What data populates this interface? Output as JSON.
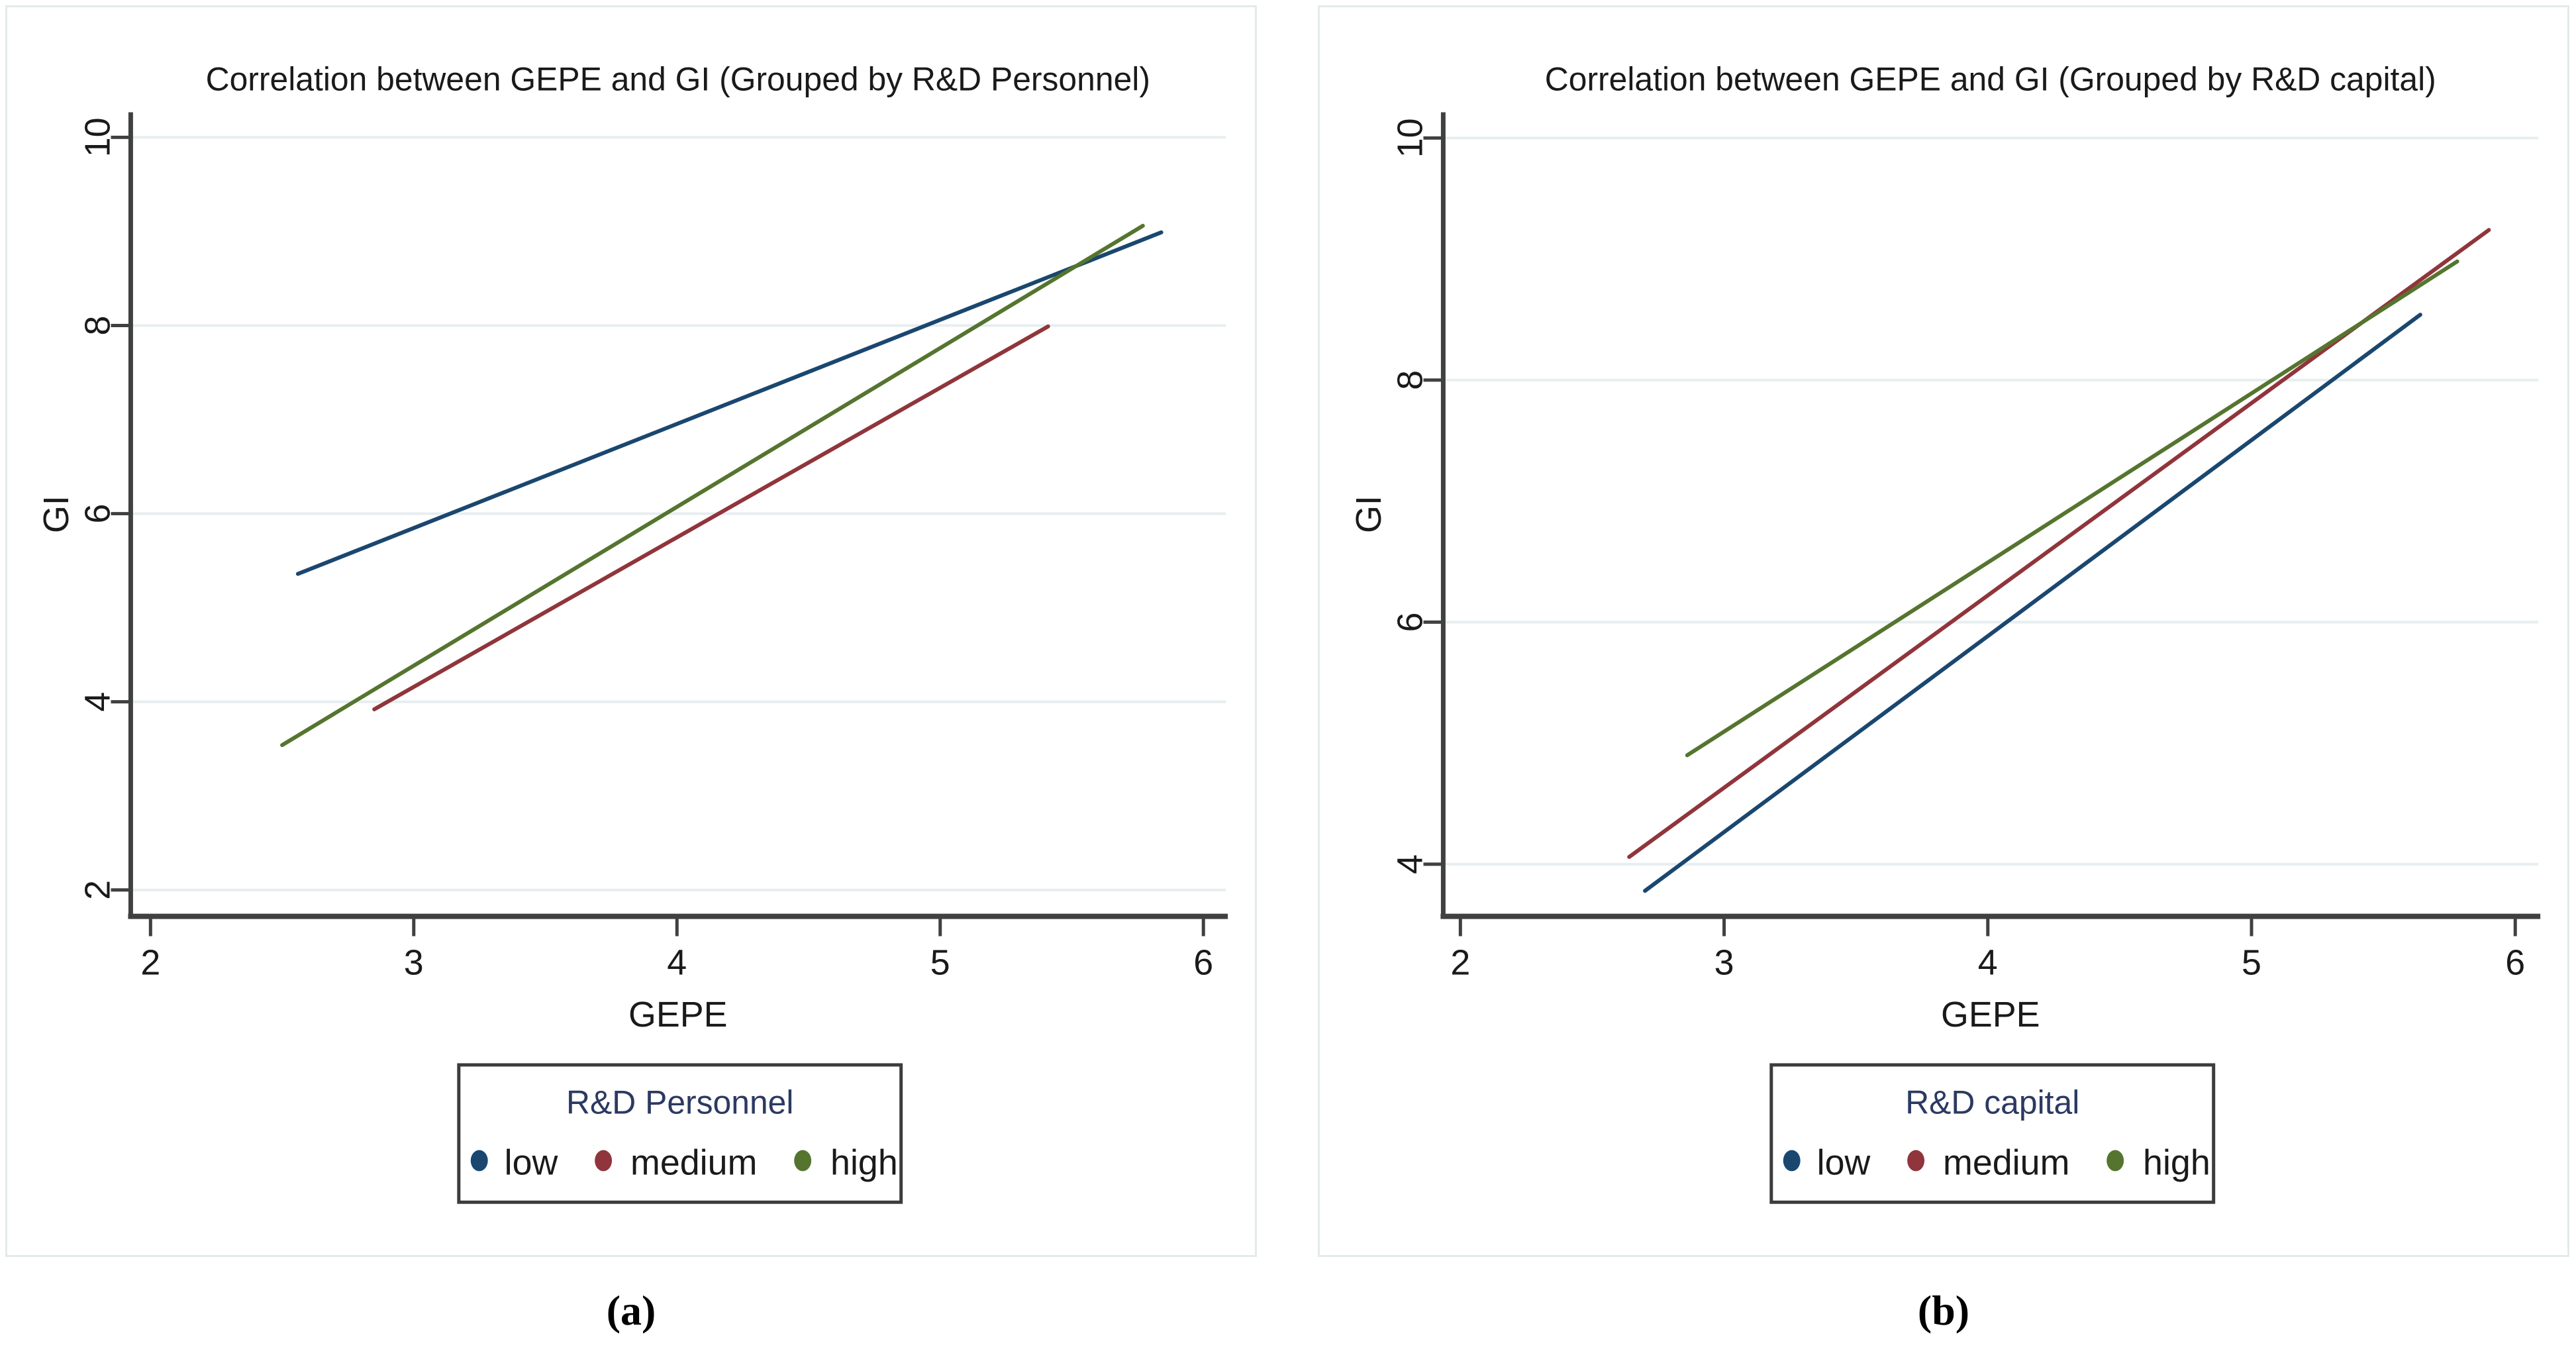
{
  "figure": {
    "background": "#ffffff",
    "panel_border_color": "#e3eaec"
  },
  "captions": {
    "a": "(a)",
    "b": "(b)"
  },
  "colors": {
    "low": "#1a476f",
    "medium": "#90353b",
    "high": "#55752f",
    "grid": "#e7eef0",
    "axis": "#404040",
    "tick_text": "#1a1a1a",
    "title_text": "#1a1a1a",
    "legend_border": "#3c3c3c",
    "legend_title": "#2c3a62"
  },
  "chart_data": [
    {
      "type": "line",
      "title": "Correlation between GEPE and GI (Grouped by R&D Personnel)",
      "xlabel": "GEPE",
      "ylabel": "GI",
      "xticks": [
        2,
        3,
        4,
        5,
        6
      ],
      "yticks": [
        2,
        4,
        6,
        8,
        10
      ],
      "xlim": [
        1.92,
        6.09
      ],
      "ylim": [
        1.7,
        10.3
      ],
      "grid": true,
      "legend": {
        "title": "R&D Personnel",
        "position": "bottom",
        "entries": [
          "low",
          "medium",
          "high"
        ]
      },
      "series": [
        {
          "name": "low",
          "color": "#1a476f",
          "points": [
            [
              2.56,
              5.36
            ],
            [
              5.84,
              8.99
            ]
          ]
        },
        {
          "name": "medium",
          "color": "#90353b",
          "points": [
            [
              2.85,
              3.92
            ],
            [
              5.41,
              7.99
            ]
          ]
        },
        {
          "name": "high",
          "color": "#55752f",
          "points": [
            [
              2.5,
              3.54
            ],
            [
              5.77,
              9.06
            ]
          ]
        }
      ]
    },
    {
      "type": "line",
      "title": "Correlation between GEPE and GI (Grouped by R&D capital)",
      "xlabel": "GEPE",
      "ylabel": "GI",
      "xticks": [
        2,
        3,
        4,
        5,
        6
      ],
      "yticks": [
        4,
        6,
        8,
        10
      ],
      "xlim": [
        1.92,
        6.09
      ],
      "ylim": [
        3.55,
        10.25
      ],
      "grid": true,
      "legend": {
        "title": "R&D capital",
        "position": "bottom",
        "entries": [
          "low",
          "medium",
          "high"
        ]
      },
      "series": [
        {
          "name": "low",
          "color": "#1a476f",
          "points": [
            [
              2.7,
              3.78
            ],
            [
              5.64,
              8.54
            ]
          ]
        },
        {
          "name": "medium",
          "color": "#90353b",
          "points": [
            [
              2.64,
              4.06
            ],
            [
              5.9,
              9.24
            ]
          ]
        },
        {
          "name": "high",
          "color": "#55752f",
          "points": [
            [
              2.86,
              4.9
            ],
            [
              5.78,
              8.98
            ]
          ]
        }
      ]
    }
  ]
}
